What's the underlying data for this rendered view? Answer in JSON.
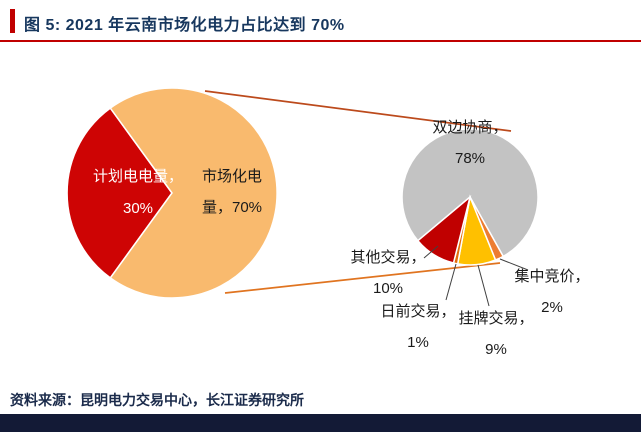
{
  "figure": {
    "title": "图 5: 2021 年云南市场化电力占比达到 70%",
    "source": "资料来源：昆明电力交易中心，长江证券研究所"
  },
  "colors": {
    "accent_red": "#C00000",
    "title_text": "#17375E",
    "source_text": "#1B2B4B",
    "footer_bar": "#131A36",
    "connector_top": "#BC4A1C",
    "connector_bottom": "#E07420",
    "leader_line": "#404040"
  },
  "chart_data": [
    {
      "type": "pie",
      "name": "yunnan-electricity-structure-2021",
      "start_angle": 216,
      "slices": [
        {
          "id": "planned",
          "label": "计划电电量",
          "value": 30,
          "color": "#CE0404",
          "display": [
            "计划电电量，",
            "30%"
          ]
        },
        {
          "id": "market",
          "label": "市场化电量",
          "value": 70,
          "color": "#F9BA6E",
          "display": [
            "市场化电",
            "量，70%"
          ]
        }
      ]
    },
    {
      "type": "pie",
      "name": "market-trading-breakdown",
      "start_angle": 230,
      "slices": [
        {
          "id": "bilateral",
          "label": "双边协商",
          "value": 78,
          "color": "#C3C3C3",
          "display": [
            "双边协商，",
            "78%"
          ]
        },
        {
          "id": "centralized-bidding",
          "label": "集中竞价",
          "value": 2,
          "color": "#ED7D31",
          "display": [
            "集中竞价，",
            "2%"
          ]
        },
        {
          "id": "listed-trading",
          "label": "挂牌交易",
          "value": 9,
          "color": "#FFC000",
          "display": [
            "挂牌交易，",
            "9%"
          ]
        },
        {
          "id": "day-ahead",
          "label": "日前交易",
          "value": 1,
          "color": "#E36C09",
          "display": [
            "日前交易，",
            "1%"
          ]
        },
        {
          "id": "other-trading",
          "label": "其他交易",
          "value": 10,
          "color": "#C00000",
          "display": [
            "其他交易，",
            "10%"
          ]
        }
      ]
    }
  ]
}
